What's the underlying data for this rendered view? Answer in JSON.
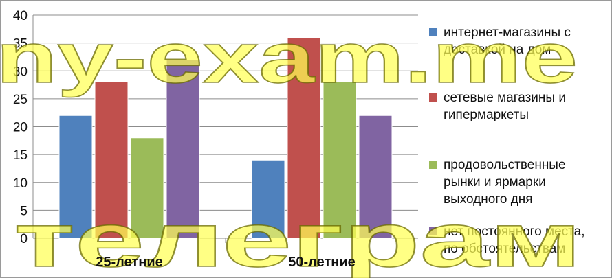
{
  "chart_data": {
    "type": "bar",
    "categories": [
      "25-летние",
      "50-летние"
    ],
    "series": [
      {
        "name": "интернет-магазины с доставкой на дом",
        "legend_lines": [
          "интернет-магазины с",
          "доставкой на дом"
        ],
        "color": "#4f81bd",
        "values": [
          22,
          14
        ]
      },
      {
        "name": "сетевые магазины и гипермаркеты",
        "legend_lines": [
          "сетевые магазины и",
          "гипермаркеты"
        ],
        "color": "#c0504d",
        "values": [
          28,
          36
        ]
      },
      {
        "name": "продовольственные рынки и ярмарки выходного дня",
        "legend_lines": [
          "продовольственные",
          "рынки и ярмарки",
          "выходного дня"
        ],
        "color": "#9bbb59",
        "values": [
          18,
          28
        ]
      },
      {
        "name": "нет постоянного места, по обстоятельствам",
        "legend_lines": [
          "нет постоянного места,",
          "по обстоятельствам"
        ],
        "color": "#8064a2",
        "values": [
          32,
          22
        ]
      }
    ],
    "ylim": [
      0,
      40
    ],
    "yticks": [
      0,
      5,
      10,
      15,
      20,
      25,
      30,
      35,
      40
    ],
    "grid": true,
    "legend": "right"
  },
  "watermark": {
    "top_text": "ny-exam.me",
    "bottom_text": "телеграм"
  }
}
